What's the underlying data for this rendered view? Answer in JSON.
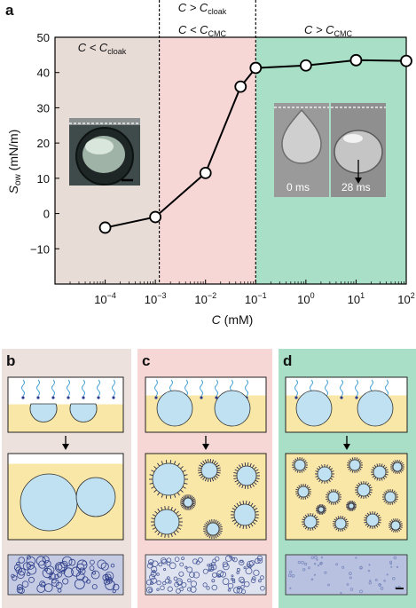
{
  "figure": {
    "panel_a": {
      "letter": "a",
      "region_labels": [
        {
          "main": "C < C",
          "sub": "cloak"
        },
        {
          "main": "C > C",
          "sub": "cloak"
        },
        {
          "main": "C < C",
          "sub": "CMC"
        },
        {
          "main": "C > C",
          "sub": "CMC"
        }
      ],
      "inset_times": [
        "0 ms",
        "28 ms"
      ],
      "colors": {
        "left_bg": "#e8dcd7",
        "mid_bg": "#f7d6d6",
        "right_bg": "#a9dfc6",
        "line": "#000000",
        "marker_fill": "#ffffff"
      }
    },
    "panel_b": {
      "letter": "b",
      "bg": "#ece1dd"
    },
    "panel_c": {
      "letter": "c",
      "bg": "#f7d6d6"
    },
    "panel_d": {
      "letter": "d",
      "bg": "#a9dfc6"
    }
  },
  "chart_data": {
    "type": "line",
    "x_scale": "log",
    "x": [
      0.0001,
      0.001,
      0.01,
      0.05,
      0.1,
      1,
      10,
      100
    ],
    "values": [
      -4,
      -1,
      11.5,
      36,
      41.3,
      42,
      43.5,
      43.3
    ],
    "xlabel": {
      "main": "C",
      "unit": " (mM)"
    },
    "ylabel": {
      "main": "S",
      "sub": "ow",
      "unit": " (mN/m)"
    },
    "xlim": [
      1e-05,
      100
    ],
    "ylim": [
      -20,
      50
    ],
    "yticks": [
      -10,
      0,
      10,
      20,
      30,
      40,
      50
    ],
    "xticks": [
      {
        "base": "10",
        "exp": "−4",
        "value": 0.0001
      },
      {
        "base": "10",
        "exp": "−3",
        "value": 0.001
      },
      {
        "base": "10",
        "exp": "−2",
        "value": 0.01
      },
      {
        "base": "10",
        "exp": "−1",
        "value": 0.1
      },
      {
        "base": "10",
        "exp": "0",
        "value": 1
      },
      {
        "base": "10",
        "exp": "1",
        "value": 10
      },
      {
        "base": "10",
        "exp": "2",
        "value": 100
      }
    ],
    "boundaries": [
      0.0012,
      0.1
    ]
  }
}
